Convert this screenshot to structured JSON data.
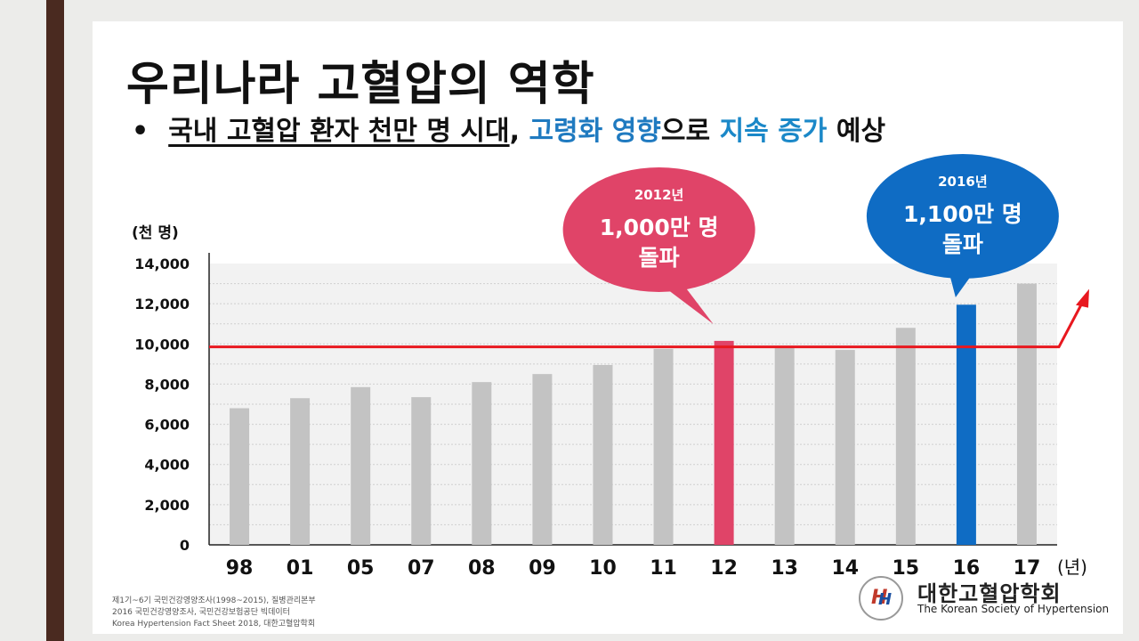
{
  "slide": {
    "title": "우리나라 고혈압의 역학",
    "bullet": "•",
    "subtitle_parts": {
      "p1": "국내 고혈압 환자 천만 명 시대",
      "p2": ", ",
      "p3": "고령화 영향",
      "p4": "으로 ",
      "p5": "지속 증가",
      "p6": " 예상"
    }
  },
  "chart_data": {
    "type": "bar",
    "ylabel": "(천 명)",
    "xunit": "(년)",
    "ylim": [
      0,
      14000
    ],
    "yticks": [
      "0",
      "2,000",
      "4,000",
      "6,000",
      "8,000",
      "10,000",
      "12,000",
      "14,000"
    ],
    "categories": [
      "98",
      "01",
      "05",
      "07",
      "08",
      "09",
      "10",
      "11",
      "12",
      "13",
      "14",
      "15",
      "16",
      "17"
    ],
    "values": [
      6800,
      7300,
      7850,
      7350,
      8100,
      8500,
      8950,
      9750,
      10150,
      9850,
      9700,
      10800,
      11950,
      13000
    ],
    "bar_colors": [
      "#c3c3c3",
      "#c3c3c3",
      "#c3c3c3",
      "#c3c3c3",
      "#c3c3c3",
      "#c3c3c3",
      "#c3c3c3",
      "#c3c3c3",
      "#e04468",
      "#c3c3c3",
      "#c3c3c3",
      "#c3c3c3",
      "#0f6cc4",
      "#c3c3c3"
    ],
    "reference_line": {
      "value": 9850,
      "color": "#e8181f"
    },
    "grid": true,
    "callouts": [
      {
        "category": "12",
        "year": "2012년",
        "line1": "1,000만 명",
        "line2": "돌파",
        "color": "#e04468"
      },
      {
        "category": "16",
        "year": "2016년",
        "line1": "1,100만 명",
        "line2": "돌파",
        "color": "#0f6cc4"
      }
    ]
  },
  "source": {
    "line1": "제1기~6기 국민건강영양조사(1998~2015), 질병관리본부",
    "line2": "2016 국민건강영양조사, 국민건강보험공단 빅데이터",
    "line3": "Korea Hypertension Fact Sheet 2018, 대한고혈압학회"
  },
  "logo": {
    "name_kr": "대한고혈압학회",
    "name_en": "The Korean Society of Hypertension"
  }
}
